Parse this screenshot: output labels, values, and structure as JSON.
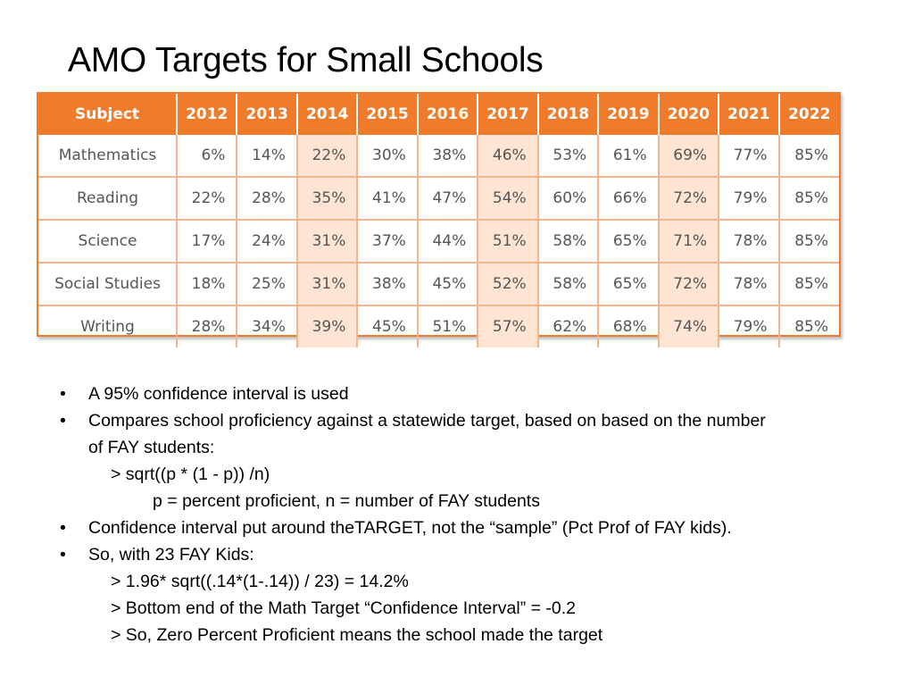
{
  "title": "AMO Targets for Small Schools",
  "table": {
    "headers": [
      "Subject",
      "2012",
      "2013",
      "2014",
      "2015",
      "2016",
      "2017",
      "2018",
      "2019",
      "2020",
      "2021",
      "2022"
    ],
    "highlight_columns": [
      "2014",
      "2017",
      "2020"
    ],
    "colors": {
      "header_bg": "#f07b2b",
      "highlight_bg": "#fde4d3",
      "grid": "#f5b48a"
    },
    "rows": [
      {
        "subject": "Mathematics",
        "values": [
          "6%",
          "14%",
          "22%",
          "30%",
          "38%",
          "46%",
          "53%",
          "61%",
          "69%",
          "77%",
          "85%"
        ]
      },
      {
        "subject": "Reading",
        "values": [
          "22%",
          "28%",
          "35%",
          "41%",
          "47%",
          "54%",
          "60%",
          "66%",
          "72%",
          "79%",
          "85%"
        ]
      },
      {
        "subject": "Science",
        "values": [
          "17%",
          "24%",
          "31%",
          "37%",
          "44%",
          "51%",
          "58%",
          "65%",
          "71%",
          "78%",
          "85%"
        ]
      },
      {
        "subject": "Social Studies",
        "values": [
          "18%",
          "25%",
          "31%",
          "38%",
          "45%",
          "52%",
          "58%",
          "65%",
          "72%",
          "78%",
          "85%"
        ]
      },
      {
        "subject": "Writing",
        "values": [
          "28%",
          "34%",
          "39%",
          "45%",
          "51%",
          "57%",
          "62%",
          "68%",
          "74%",
          "79%",
          "85%"
        ]
      }
    ]
  },
  "notes": {
    "bullet_char": "•",
    "b1": "A 95% confidence interval is used",
    "b2_line1": "Compares school proficiency against a statewide target, based on based on the number",
    "b2_line2": "of FAY students:",
    "b2_sub1": "> sqrt((p * (1 - p)) /n)",
    "b2_sub2": "p = percent proficient, n = number of FAY students",
    "b3": "Confidence interval put around theTARGET, not the “sample” (Pct Prof of FAY kids).",
    "b4": "So, with 23 FAY Kids:",
    "b4_sub1": "> 1.96* sqrt((.14*(1-.14)) / 23) = 14.2%",
    "b4_sub2": "> Bottom end of the Math Target “Confidence Interval” = -0.2",
    "b4_sub3": ">  So, Zero Percent Proficient means the school made the target"
  }
}
